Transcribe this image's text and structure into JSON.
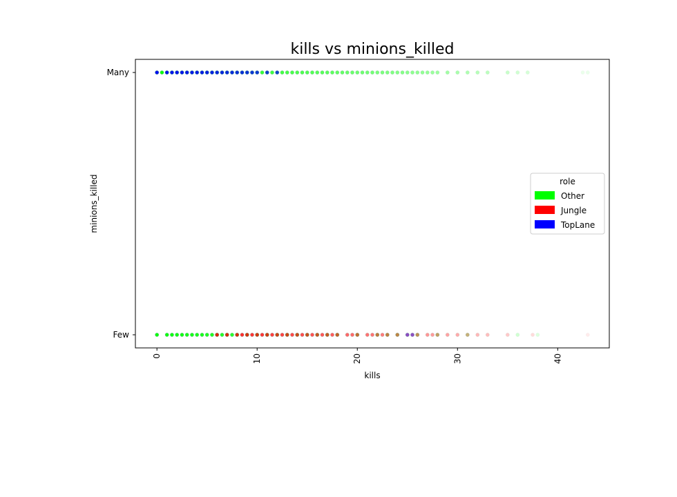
{
  "chart_data": {
    "type": "scatter",
    "title": "kills vs minions_killed",
    "xlabel": "kills",
    "ylabel": "minions_killed",
    "xlim": [
      -2.15,
      45.15
    ],
    "x_ticks": [
      0,
      10,
      20,
      30,
      40
    ],
    "y_categories": [
      "Few",
      "Many"
    ],
    "grid": false,
    "legend": {
      "title": "role",
      "placement": "center-right",
      "entries": [
        {
          "label": "Other",
          "color": "#00ff00"
        },
        {
          "label": "Jungle",
          "color": "#ff0000"
        },
        {
          "label": "TopLane",
          "color": "#0000ff"
        }
      ]
    },
    "series": [
      {
        "name": "Other",
        "color": "#00ff00",
        "points": [
          {
            "y": "Many",
            "x": [
              0,
              0.5,
              1,
              1.5,
              2,
              2.5,
              3,
              3.5,
              4,
              4.5,
              5,
              5.5,
              6,
              6.5,
              7,
              7.5,
              8,
              8.5,
              9,
              9.5,
              10,
              10.5,
              11,
              11.5,
              12,
              12.5,
              13,
              13.5,
              14,
              14.5,
              15,
              15.5,
              16,
              16.5,
              17,
              17.5,
              18,
              18.5,
              19,
              19.5,
              20,
              20.5,
              21,
              21.5,
              22,
              22.5,
              23,
              23.5,
              24,
              24.5,
              25,
              25.5,
              26,
              26.5,
              27,
              27.5,
              28,
              29,
              30,
              31,
              32,
              33,
              35,
              36,
              37,
              42.5,
              43
            ]
          },
          {
            "y": "Few",
            "x": [
              0,
              1,
              1.5,
              2,
              2.5,
              3,
              3.5,
              4,
              4.5,
              5,
              5.5,
              6,
              6.5,
              7,
              7.5,
              8,
              9,
              10,
              11,
              12,
              13,
              14,
              15,
              16,
              17,
              18,
              20,
              22,
              23,
              24,
              26,
              28,
              31,
              36,
              38
            ]
          }
        ]
      },
      {
        "name": "Jungle",
        "color": "#ff0000",
        "points": [
          {
            "y": "Few",
            "x": [
              6,
              7,
              8,
              8.5,
              9,
              9.5,
              10,
              10.5,
              11,
              11.5,
              12,
              12.5,
              13,
              13.5,
              14,
              14.5,
              15,
              15.5,
              16,
              16.5,
              17,
              17.5,
              18,
              19,
              19.5,
              20,
              21,
              21.5,
              22,
              22.5,
              23,
              24,
              25,
              25.5,
              26,
              27,
              27.5,
              28,
              29,
              30,
              31,
              32,
              33,
              35,
              37.5,
              43
            ]
          }
        ]
      },
      {
        "name": "TopLane",
        "color": "#0000ff",
        "points": [
          {
            "y": "Many",
            "x": [
              0,
              1,
              1.5,
              2,
              2.5,
              3,
              3.5,
              4,
              4.5,
              5,
              5.5,
              6,
              6.5,
              7,
              7.5,
              8,
              8.5,
              9,
              9.5,
              10,
              11,
              12
            ]
          },
          {
            "y": "Few",
            "x": [
              25,
              25.5
            ]
          }
        ]
      }
    ]
  }
}
